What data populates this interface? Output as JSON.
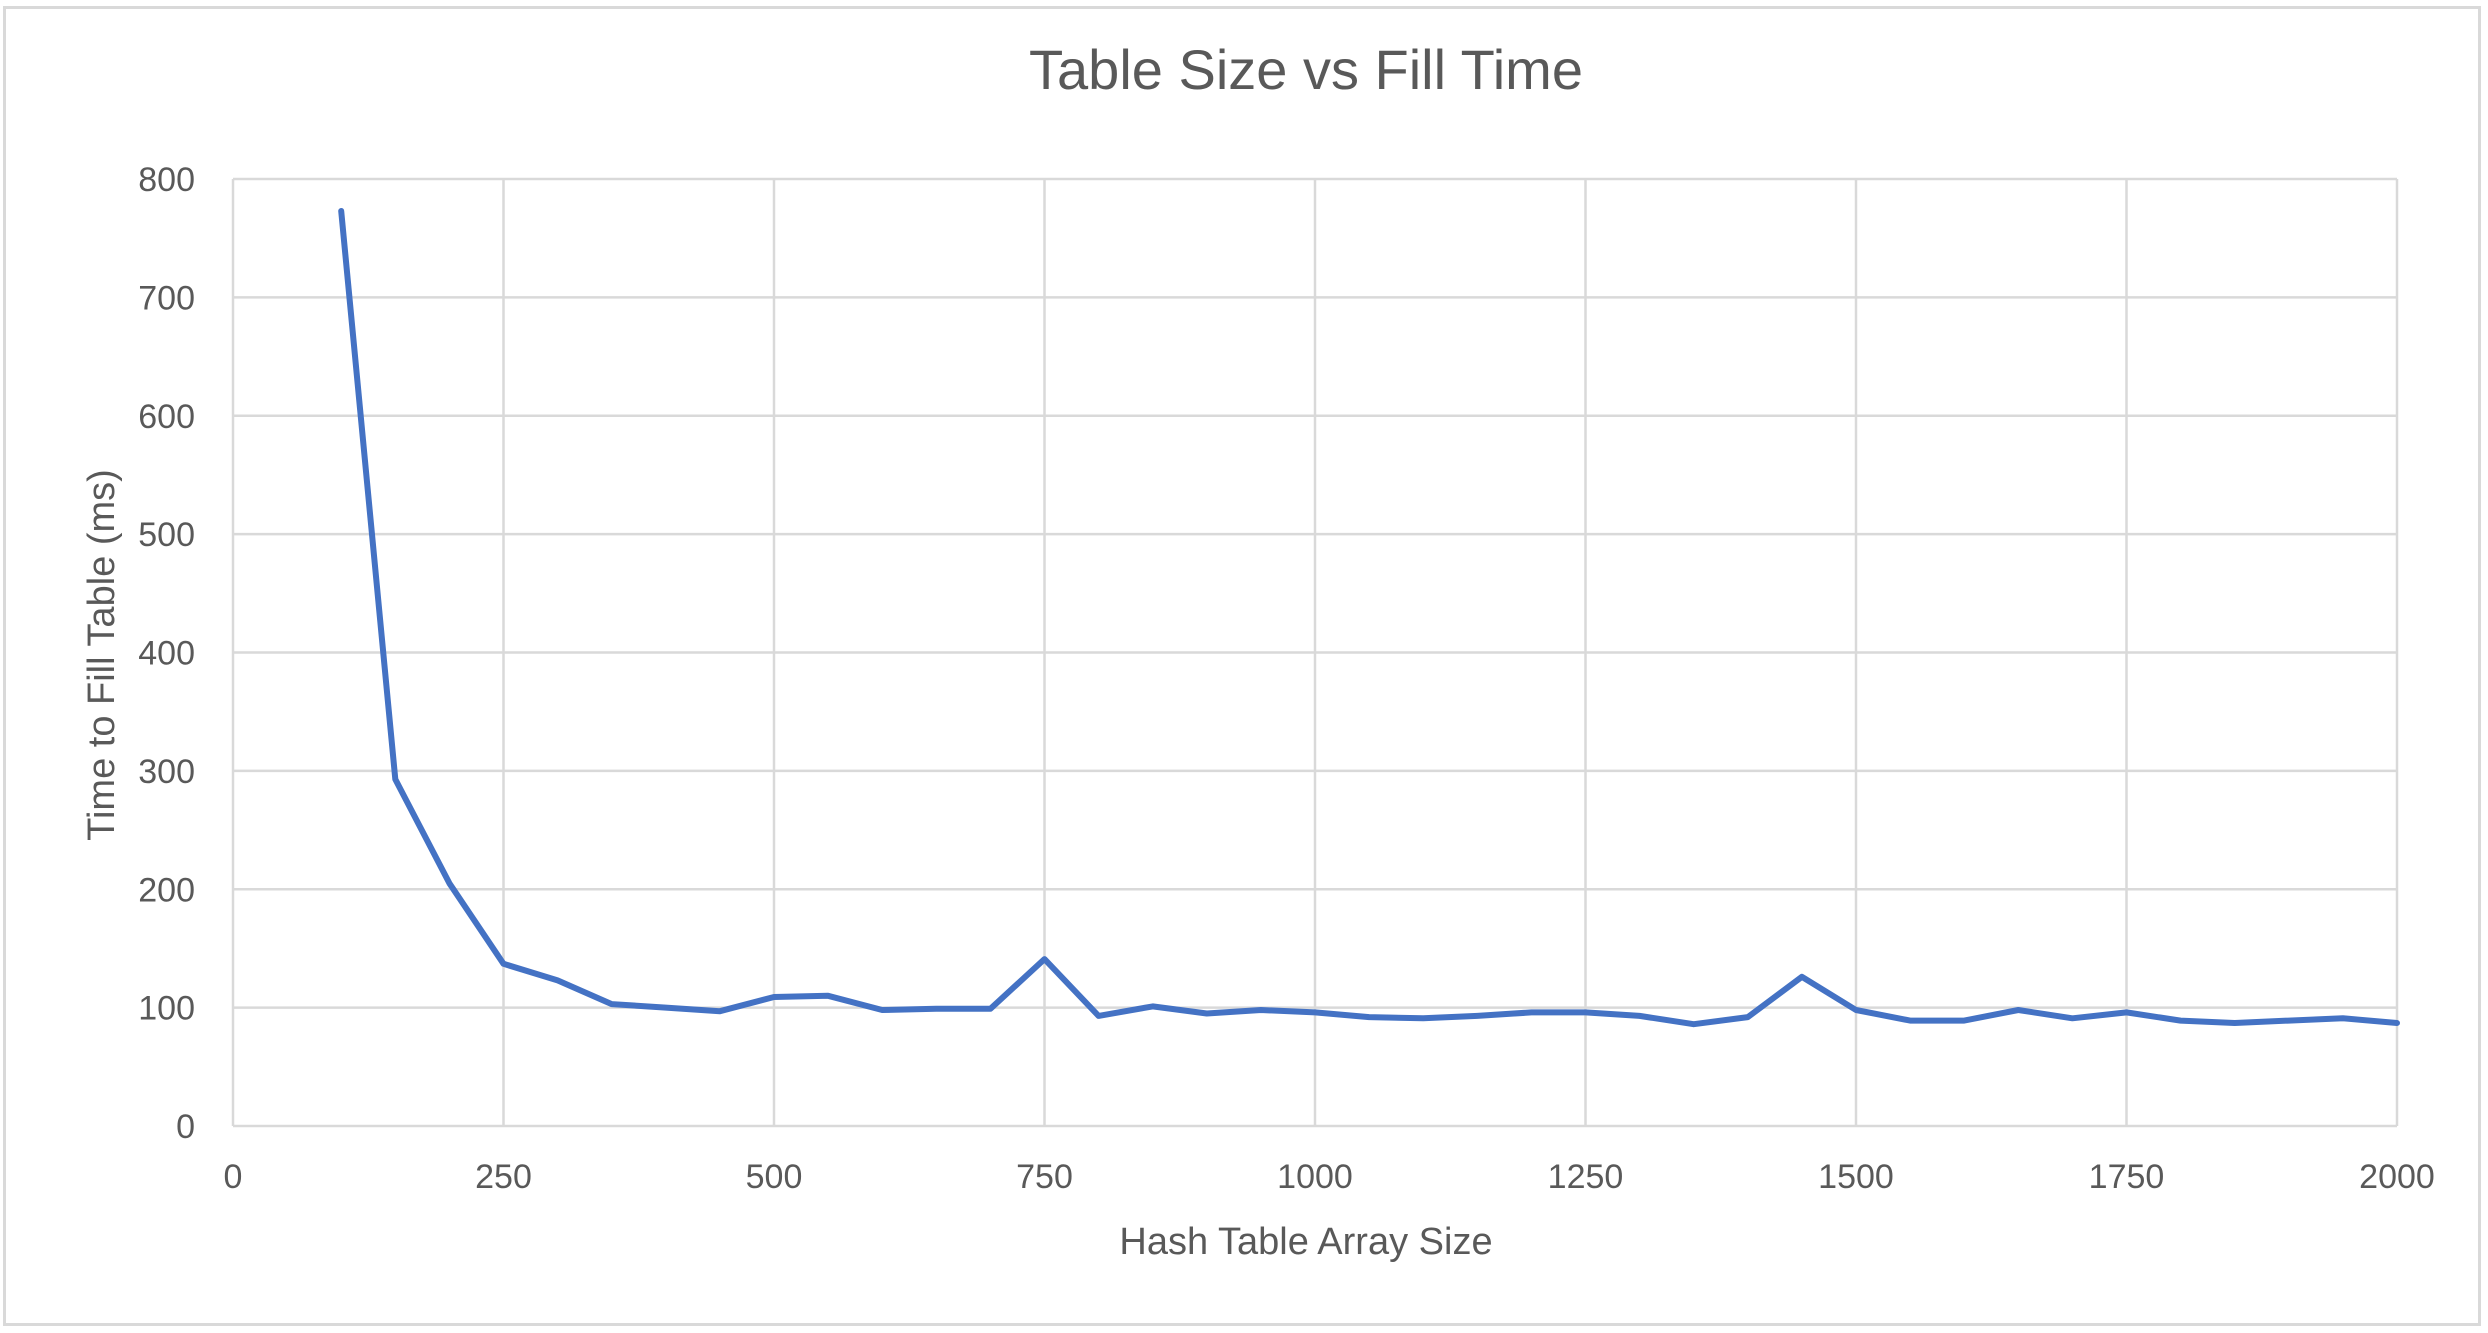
{
  "chart_data": {
    "type": "line",
    "title": "Table Size vs Fill Time",
    "xlabel": "Hash Table Array Size",
    "ylabel": "Time to Fill Table (ms)",
    "xlim": [
      0,
      2000
    ],
    "ylim": [
      0,
      800
    ],
    "xticks": [
      0,
      250,
      500,
      750,
      1000,
      1250,
      1500,
      1750,
      2000
    ],
    "yticks": [
      0,
      100,
      200,
      300,
      400,
      500,
      600,
      700,
      800
    ],
    "grid": true,
    "legend": "none",
    "series": [
      {
        "color": "#4472c4",
        "x": [
          100,
          150,
          200,
          250,
          300,
          350,
          400,
          450,
          500,
          550,
          600,
          650,
          700,
          750,
          800,
          850,
          900,
          950,
          1000,
          1050,
          1100,
          1150,
          1200,
          1250,
          1300,
          1350,
          1400,
          1450,
          1500,
          1550,
          1600,
          1650,
          1700,
          1750,
          1800,
          1850,
          1900,
          1950,
          2000
        ],
        "y": [
          773,
          293,
          205,
          137,
          123,
          103,
          100,
          97,
          109,
          110,
          98,
          99,
          99,
          141,
          93,
          101,
          95,
          98,
          96,
          92,
          91,
          93,
          96,
          96,
          93,
          86,
          92,
          126,
          98,
          89,
          89,
          98,
          91,
          96,
          89,
          87,
          89,
          91,
          87
        ]
      }
    ]
  },
  "colors": {
    "line": "#4472c4",
    "grid": "#d9d9d9",
    "text": "#595959"
  }
}
